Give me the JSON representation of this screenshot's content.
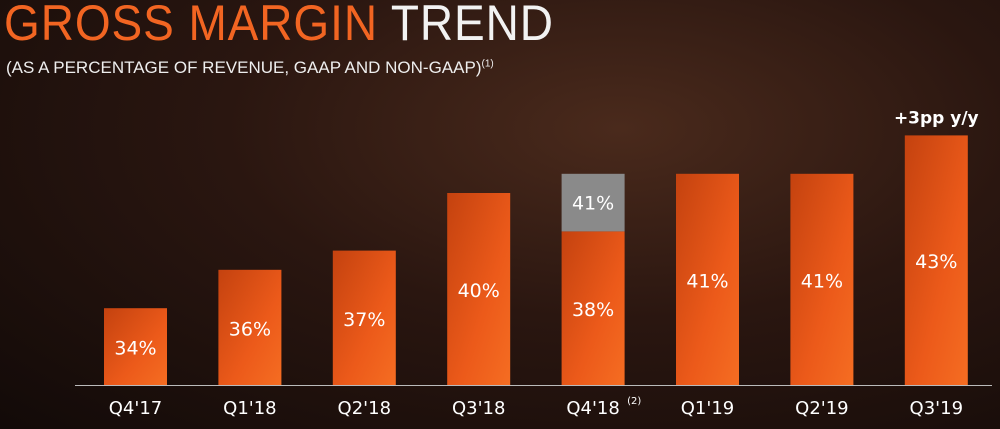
{
  "colors": {
    "bar": "#e8561a",
    "bar_light": "#f06a20",
    "gaap_extra": "#8a8a8a",
    "accent": "#f26522",
    "text": "#ffffff"
  },
  "chart_data": {
    "type": "bar",
    "title_part1": "GROSS MARGIN",
    "title_part2": "TREND",
    "subtitle": "(AS A PERCENTAGE OF REVENUE, GAAP AND NON-GAAP)",
    "subtitle_note": "(1)",
    "categories": [
      "Q4'17",
      "Q1'18",
      "Q2'18",
      "Q3'18",
      "Q4'18",
      "Q1'19",
      "Q2'19",
      "Q3'19"
    ],
    "category_notes": [
      "",
      "",
      "",
      "",
      "(2)",
      "",
      "",
      ""
    ],
    "values": [
      34,
      36,
      37,
      40,
      38,
      41,
      41,
      43
    ],
    "labels": [
      "34%",
      "36%",
      "37%",
      "40%",
      "38%",
      "41%",
      "41%",
      "43%"
    ],
    "stacked_extra": {
      "category": "Q4'18",
      "top_value": 41,
      "label": "41%"
    },
    "annotation": {
      "category": "Q3'19",
      "text": "+3pp y/y"
    },
    "ylim": [
      30,
      44
    ],
    "xlabel": "",
    "ylabel": "",
    "grid": false,
    "legend": "none"
  }
}
